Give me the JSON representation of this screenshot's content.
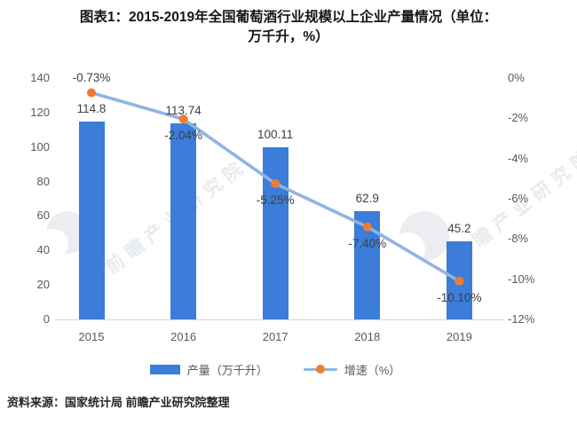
{
  "title": {
    "line1": "图表1：2015-2019年全国葡萄酒行业规模以上企业产量情况（单位：",
    "line2": "万千升，%）"
  },
  "watermark": {
    "text": "前瞻产业研究院"
  },
  "source": "资料来源：国家统计局 前瞻产业研究院整理",
  "chart_data": {
    "type": "bar+line",
    "categories": [
      "2015",
      "2016",
      "2017",
      "2018",
      "2019"
    ],
    "series": [
      {
        "name": "产量（万千升）",
        "type": "bar",
        "values": [
          114.8,
          113.74,
          100.11,
          62.9,
          45.2
        ],
        "labels": [
          "114.8",
          "113.74",
          "100.11",
          "62.9",
          "45.2"
        ],
        "color": "#3b7dd8",
        "axis": "left"
      },
      {
        "name": "增速（%）",
        "type": "line",
        "values": [
          -0.73,
          -2.04,
          -5.25,
          -7.4,
          -10.1
        ],
        "labels": [
          "-0.73%",
          "-2.04%",
          "-5.25%",
          "-7.40%",
          "-10.10%"
        ],
        "color": "#8fb4e3",
        "marker_color": "#ed7d31",
        "axis": "right"
      }
    ],
    "left_axis": {
      "ticks": [
        140,
        120,
        100,
        80,
        60,
        40,
        20,
        0
      ],
      "min": 0,
      "max": 140
    },
    "right_axis": {
      "ticks": [
        "0%",
        "-2%",
        "-4%",
        "-6%",
        "-8%",
        "-10%",
        "-12%"
      ],
      "min": -12,
      "max": 0
    },
    "grid": false,
    "legend_position": "bottom"
  }
}
